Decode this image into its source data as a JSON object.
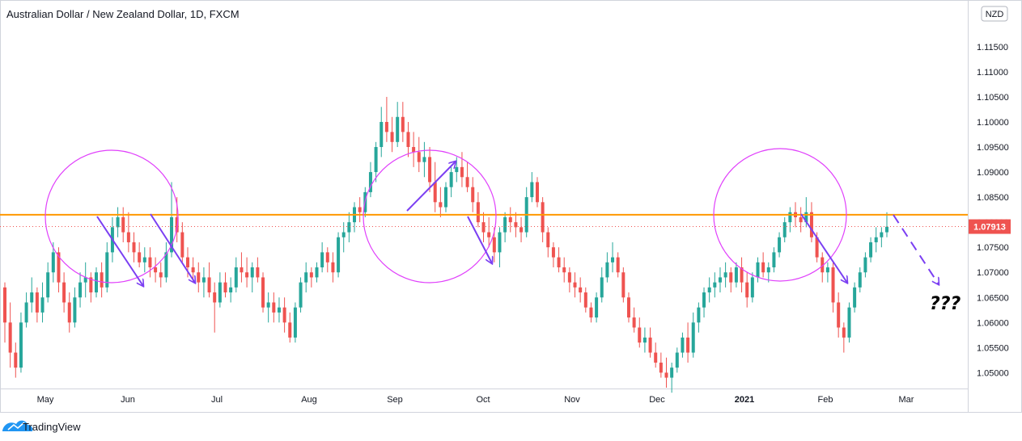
{
  "chart_data": {
    "type": "candlestick",
    "title": "Australian Dollar / New Zealand Dollar, 1D, FXCM",
    "currency": "NZD",
    "last_price": "1.07913",
    "ylim": [
      1.047,
      1.124
    ],
    "y_ticks": [
      "1.05000",
      "1.05500",
      "1.06000",
      "1.06500",
      "1.07000",
      "1.07500",
      "1.08000",
      "1.08500",
      "1.09000",
      "1.09500",
      "1.10000",
      "1.10500",
      "1.11000",
      "1.11500"
    ],
    "y_tick_values": [
      1.05,
      1.055,
      1.06,
      1.065,
      1.07,
      1.075,
      1.08,
      1.085,
      1.09,
      1.095,
      1.1,
      1.105,
      1.11,
      1.115
    ],
    "x_ticks": [
      "May",
      "Jun",
      "Jul",
      "Aug",
      "Sep",
      "Oct",
      "Nov",
      "Dec",
      "2021",
      "Feb",
      "Mar"
    ],
    "support_resistance_level": 1.0815,
    "annotation_text": "???",
    "colors": {
      "up": "#26a69a",
      "down": "#ef5350",
      "level": "#ff9800",
      "circle": "#e040fb",
      "arrow": "#7b3ff2",
      "price_badge": "#ef5350"
    },
    "candles": [
      [
        1.067,
        1.068,
        1.056,
        1.06
      ],
      [
        1.06,
        1.064,
        1.051,
        1.054
      ],
      [
        1.054,
        1.056,
        1.049,
        1.051
      ],
      [
        1.051,
        1.062,
        1.05,
        1.06
      ],
      [
        1.06,
        1.066,
        1.059,
        1.064
      ],
      [
        1.064,
        1.069,
        1.062,
        1.066
      ],
      [
        1.066,
        1.067,
        1.06,
        1.062
      ],
      [
        1.062,
        1.068,
        1.06,
        1.065
      ],
      [
        1.065,
        1.072,
        1.064,
        1.07
      ],
      [
        1.07,
        1.076,
        1.068,
        1.074
      ],
      [
        1.074,
        1.075,
        1.066,
        1.068
      ],
      [
        1.068,
        1.07,
        1.062,
        1.064
      ],
      [
        1.064,
        1.066,
        1.058,
        1.06
      ],
      [
        1.06,
        1.067,
        1.059,
        1.065
      ],
      [
        1.065,
        1.07,
        1.063,
        1.068
      ],
      [
        1.068,
        1.072,
        1.065,
        1.069
      ],
      [
        1.069,
        1.07,
        1.064,
        1.066
      ],
      [
        1.066,
        1.071,
        1.065,
        1.07
      ],
      [
        1.07,
        1.072,
        1.065,
        1.067
      ],
      [
        1.067,
        1.076,
        1.066,
        1.074
      ],
      [
        1.074,
        1.081,
        1.072,
        1.079
      ],
      [
        1.079,
        1.083,
        1.077,
        1.081
      ],
      [
        1.081,
        1.083,
        1.076,
        1.078
      ],
      [
        1.078,
        1.082,
        1.074,
        1.076
      ],
      [
        1.076,
        1.078,
        1.072,
        1.074
      ],
      [
        1.074,
        1.076,
        1.071,
        1.072
      ],
      [
        1.072,
        1.075,
        1.07,
        1.073
      ],
      [
        1.073,
        1.075,
        1.069,
        1.071
      ],
      [
        1.071,
        1.073,
        1.068,
        1.07
      ],
      [
        1.07,
        1.072,
        1.067,
        1.069
      ],
      [
        1.069,
        1.076,
        1.068,
        1.074
      ],
      [
        1.074,
        1.088,
        1.073,
        1.081
      ],
      [
        1.081,
        1.085,
        1.076,
        1.078
      ],
      [
        1.078,
        1.08,
        1.072,
        1.073
      ],
      [
        1.073,
        1.075,
        1.069,
        1.071
      ],
      [
        1.071,
        1.073,
        1.068,
        1.07
      ],
      [
        1.07,
        1.072,
        1.066,
        1.068
      ],
      [
        1.068,
        1.071,
        1.065,
        1.069
      ],
      [
        1.069,
        1.072,
        1.065,
        1.066
      ],
      [
        1.066,
        1.068,
        1.058,
        1.064
      ],
      [
        1.064,
        1.07,
        1.063,
        1.068
      ],
      [
        1.068,
        1.07,
        1.065,
        1.066
      ],
      [
        1.066,
        1.069,
        1.064,
        1.067
      ],
      [
        1.067,
        1.073,
        1.066,
        1.071
      ],
      [
        1.071,
        1.074,
        1.068,
        1.07
      ],
      [
        1.07,
        1.073,
        1.067,
        1.069
      ],
      [
        1.069,
        1.072,
        1.066,
        1.071
      ],
      [
        1.071,
        1.073,
        1.068,
        1.069
      ],
      [
        1.069,
        1.07,
        1.062,
        1.063
      ],
      [
        1.063,
        1.066,
        1.06,
        1.064
      ],
      [
        1.064,
        1.066,
        1.06,
        1.062
      ],
      [
        1.062,
        1.065,
        1.06,
        1.063
      ],
      [
        1.063,
        1.065,
        1.058,
        1.06
      ],
      [
        1.06,
        1.062,
        1.056,
        1.057
      ],
      [
        1.057,
        1.064,
        1.056,
        1.063
      ],
      [
        1.063,
        1.069,
        1.062,
        1.068
      ],
      [
        1.068,
        1.072,
        1.066,
        1.07
      ],
      [
        1.07,
        1.071,
        1.067,
        1.069
      ],
      [
        1.069,
        1.072,
        1.068,
        1.071
      ],
      [
        1.071,
        1.076,
        1.07,
        1.074
      ],
      [
        1.074,
        1.075,
        1.07,
        1.072
      ],
      [
        1.072,
        1.074,
        1.068,
        1.07
      ],
      [
        1.07,
        1.078,
        1.069,
        1.077
      ],
      [
        1.077,
        1.08,
        1.074,
        1.078
      ],
      [
        1.078,
        1.082,
        1.076,
        1.08
      ],
      [
        1.08,
        1.084,
        1.078,
        1.083
      ],
      [
        1.083,
        1.085,
        1.08,
        1.082
      ],
      [
        1.082,
        1.087,
        1.081,
        1.086
      ],
      [
        1.086,
        1.092,
        1.085,
        1.09
      ],
      [
        1.09,
        1.096,
        1.088,
        1.095
      ],
      [
        1.095,
        1.103,
        1.093,
        1.1
      ],
      [
        1.1,
        1.105,
        1.096,
        1.098
      ],
      [
        1.098,
        1.101,
        1.094,
        1.096
      ],
      [
        1.096,
        1.104,
        1.095,
        1.101
      ],
      [
        1.101,
        1.104,
        1.096,
        1.098
      ],
      [
        1.098,
        1.1,
        1.093,
        1.095
      ],
      [
        1.095,
        1.098,
        1.091,
        1.094
      ],
      [
        1.094,
        1.097,
        1.09,
        1.092
      ],
      [
        1.092,
        1.096,
        1.089,
        1.093
      ],
      [
        1.093,
        1.095,
        1.086,
        1.088
      ],
      [
        1.088,
        1.092,
        1.082,
        1.084
      ],
      [
        1.084,
        1.087,
        1.081,
        1.083
      ],
      [
        1.083,
        1.088,
        1.082,
        1.087
      ],
      [
        1.087,
        1.091,
        1.085,
        1.09
      ],
      [
        1.09,
        1.093,
        1.088,
        1.091
      ],
      [
        1.091,
        1.094,
        1.087,
        1.089
      ],
      [
        1.089,
        1.092,
        1.086,
        1.087
      ],
      [
        1.087,
        1.089,
        1.082,
        1.084
      ],
      [
        1.084,
        1.086,
        1.079,
        1.08
      ],
      [
        1.08,
        1.082,
        1.076,
        1.078
      ],
      [
        1.078,
        1.081,
        1.075,
        1.077
      ],
      [
        1.077,
        1.079,
        1.072,
        1.074
      ],
      [
        1.074,
        1.079,
        1.071,
        1.078
      ],
      [
        1.078,
        1.082,
        1.076,
        1.081
      ],
      [
        1.081,
        1.083,
        1.078,
        1.08
      ],
      [
        1.08,
        1.082,
        1.077,
        1.079
      ],
      [
        1.079,
        1.081,
        1.076,
        1.078
      ],
      [
        1.078,
        1.087,
        1.077,
        1.085
      ],
      [
        1.085,
        1.09,
        1.084,
        1.088
      ],
      [
        1.088,
        1.089,
        1.083,
        1.084
      ],
      [
        1.084,
        1.085,
        1.076,
        1.078
      ],
      [
        1.078,
        1.079,
        1.073,
        1.075
      ],
      [
        1.075,
        1.076,
        1.071,
        1.073
      ],
      [
        1.073,
        1.075,
        1.07,
        1.071
      ],
      [
        1.071,
        1.073,
        1.068,
        1.07
      ],
      [
        1.07,
        1.071,
        1.066,
        1.068
      ],
      [
        1.068,
        1.07,
        1.065,
        1.067
      ],
      [
        1.067,
        1.069,
        1.064,
        1.066
      ],
      [
        1.066,
        1.067,
        1.062,
        1.063
      ],
      [
        1.063,
        1.064,
        1.06,
        1.061
      ],
      [
        1.061,
        1.066,
        1.06,
        1.065
      ],
      [
        1.065,
        1.071,
        1.064,
        1.069
      ],
      [
        1.069,
        1.074,
        1.068,
        1.072
      ],
      [
        1.072,
        1.076,
        1.07,
        1.073
      ],
      [
        1.073,
        1.074,
        1.069,
        1.07
      ],
      [
        1.07,
        1.071,
        1.064,
        1.065
      ],
      [
        1.065,
        1.066,
        1.06,
        1.061
      ],
      [
        1.061,
        1.063,
        1.058,
        1.059
      ],
      [
        1.059,
        1.061,
        1.055,
        1.056
      ],
      [
        1.056,
        1.059,
        1.054,
        1.057
      ],
      [
        1.057,
        1.059,
        1.053,
        1.054
      ],
      [
        1.054,
        1.056,
        1.051,
        1.052
      ],
      [
        1.052,
        1.054,
        1.049,
        1.05
      ],
      [
        1.05,
        1.053,
        1.047,
        1.049
      ],
      [
        1.049,
        1.052,
        1.046,
        1.051
      ],
      [
        1.051,
        1.055,
        1.05,
        1.054
      ],
      [
        1.054,
        1.058,
        1.053,
        1.057
      ],
      [
        1.057,
        1.06,
        1.052,
        1.054
      ],
      [
        1.054,
        1.062,
        1.053,
        1.06
      ],
      [
        1.06,
        1.064,
        1.058,
        1.063
      ],
      [
        1.063,
        1.067,
        1.061,
        1.066
      ],
      [
        1.066,
        1.069,
        1.064,
        1.067
      ],
      [
        1.067,
        1.07,
        1.065,
        1.068
      ],
      [
        1.068,
        1.071,
        1.066,
        1.069
      ],
      [
        1.069,
        1.072,
        1.067,
        1.07
      ],
      [
        1.07,
        1.071,
        1.066,
        1.068
      ],
      [
        1.068,
        1.072,
        1.067,
        1.071
      ],
      [
        1.071,
        1.073,
        1.066,
        1.068
      ],
      [
        1.068,
        1.07,
        1.063,
        1.065
      ],
      [
        1.065,
        1.07,
        1.064,
        1.069
      ],
      [
        1.069,
        1.073,
        1.068,
        1.072
      ],
      [
        1.072,
        1.074,
        1.069,
        1.07
      ],
      [
        1.07,
        1.072,
        1.068,
        1.071
      ],
      [
        1.071,
        1.075,
        1.07,
        1.074
      ],
      [
        1.074,
        1.078,
        1.073,
        1.077
      ],
      [
        1.077,
        1.081,
        1.076,
        1.08
      ],
      [
        1.08,
        1.083,
        1.078,
        1.082
      ],
      [
        1.082,
        1.084,
        1.079,
        1.081
      ],
      [
        1.081,
        1.083,
        1.078,
        1.08
      ],
      [
        1.08,
        1.085,
        1.079,
        1.082
      ],
      [
        1.082,
        1.084,
        1.076,
        1.077
      ],
      [
        1.077,
        1.078,
        1.072,
        1.073
      ],
      [
        1.073,
        1.074,
        1.068,
        1.07
      ],
      [
        1.07,
        1.072,
        1.068,
        1.071
      ],
      [
        1.071,
        1.072,
        1.062,
        1.064
      ],
      [
        1.064,
        1.066,
        1.057,
        1.059
      ],
      [
        1.059,
        1.06,
        1.054,
        1.057
      ],
      [
        1.057,
        1.064,
        1.056,
        1.063
      ],
      [
        1.063,
        1.068,
        1.062,
        1.067
      ],
      [
        1.067,
        1.071,
        1.066,
        1.07
      ],
      [
        1.07,
        1.074,
        1.069,
        1.073
      ],
      [
        1.073,
        1.077,
        1.072,
        1.076
      ],
      [
        1.076,
        1.079,
        1.074,
        1.077
      ],
      [
        1.077,
        1.079,
        1.075,
        1.078
      ],
      [
        1.078,
        1.082,
        1.077,
        1.0791
      ]
    ]
  },
  "footer": {
    "brand": "TradingView"
  }
}
